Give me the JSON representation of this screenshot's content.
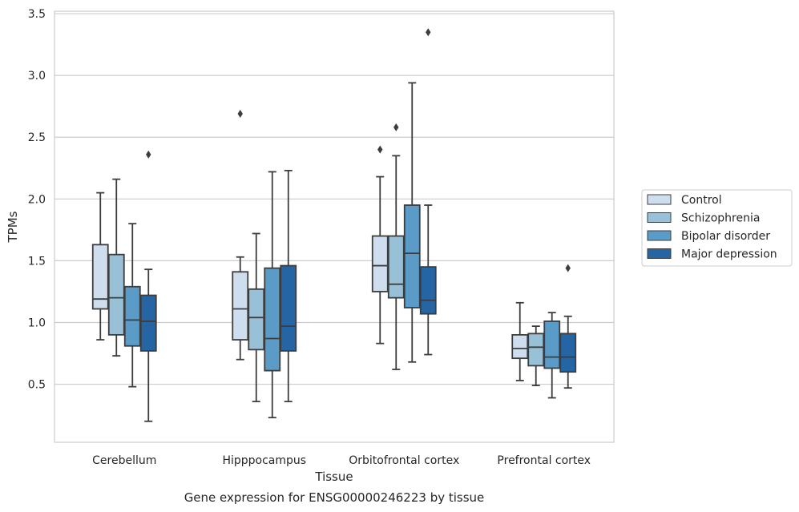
{
  "chart_data": {
    "type": "box",
    "title": "Gene expression for ENSG00000246223 by tissue",
    "xlabel": "Tissue",
    "ylabel": "TPMs",
    "categories": [
      "Cerebellum",
      "Hipppocampus",
      "Orbitofrontal cortex",
      "Prefrontal cortex"
    ],
    "ylim": [
      0.03,
      3.52
    ],
    "yticks": [
      0.5,
      1.0,
      1.5,
      2.0,
      2.5,
      3.0,
      3.5
    ],
    "ytick_labels": [
      "0.5",
      "1.0",
      "1.5",
      "2.0",
      "2.5",
      "3.0",
      "3.5"
    ],
    "grid": "horizontal",
    "legend_position": "right",
    "series": [
      {
        "name": "Control",
        "color": "#cfdeee",
        "boxes": [
          {
            "whisker_low": 0.86,
            "q1": 1.11,
            "median": 1.19,
            "q3": 1.63,
            "whisker_high": 2.05,
            "outliers": []
          },
          {
            "whisker_low": 0.7,
            "q1": 0.86,
            "median": 1.11,
            "q3": 1.41,
            "whisker_high": 1.53,
            "outliers": [
              2.69
            ]
          },
          {
            "whisker_low": 0.83,
            "q1": 1.25,
            "median": 1.46,
            "q3": 1.7,
            "whisker_high": 2.18,
            "outliers": [
              2.4
            ]
          },
          {
            "whisker_low": 0.53,
            "q1": 0.71,
            "median": 0.79,
            "q3": 0.9,
            "whisker_high": 1.16,
            "outliers": []
          }
        ]
      },
      {
        "name": "Schizophrenia",
        "color": "#98c1d8",
        "boxes": [
          {
            "whisker_low": 0.73,
            "q1": 0.9,
            "median": 1.2,
            "q3": 1.55,
            "whisker_high": 2.16,
            "outliers": []
          },
          {
            "whisker_low": 0.36,
            "q1": 0.78,
            "median": 1.04,
            "q3": 1.27,
            "whisker_high": 1.72,
            "outliers": []
          },
          {
            "whisker_low": 0.62,
            "q1": 1.2,
            "median": 1.31,
            "q3": 1.7,
            "whisker_high": 2.35,
            "outliers": [
              2.58
            ]
          },
          {
            "whisker_low": 0.49,
            "q1": 0.65,
            "median": 0.8,
            "q3": 0.91,
            "whisker_high": 0.97,
            "outliers": []
          }
        ]
      },
      {
        "name": "Bipolar disorder",
        "color": "#5a9bc8",
        "boxes": [
          {
            "whisker_low": 0.48,
            "q1": 0.81,
            "median": 1.02,
            "q3": 1.29,
            "whisker_high": 1.8,
            "outliers": []
          },
          {
            "whisker_low": 0.23,
            "q1": 0.61,
            "median": 0.87,
            "q3": 1.44,
            "whisker_high": 2.22,
            "outliers": []
          },
          {
            "whisker_low": 0.68,
            "q1": 1.12,
            "median": 1.56,
            "q3": 1.95,
            "whisker_high": 2.94,
            "outliers": []
          },
          {
            "whisker_low": 0.39,
            "q1": 0.63,
            "median": 0.72,
            "q3": 1.01,
            "whisker_high": 1.08,
            "outliers": []
          }
        ]
      },
      {
        "name": "Major depression",
        "color": "#2565a4",
        "boxes": [
          {
            "whisker_low": 0.2,
            "q1": 0.77,
            "median": 1.01,
            "q3": 1.22,
            "whisker_high": 1.43,
            "outliers": [
              2.36
            ]
          },
          {
            "whisker_low": 0.36,
            "q1": 0.77,
            "median": 0.97,
            "q3": 1.46,
            "whisker_high": 2.23,
            "outliers": []
          },
          {
            "whisker_low": 0.74,
            "q1": 1.07,
            "median": 1.18,
            "q3": 1.45,
            "whisker_high": 1.95,
            "outliers": [
              3.35
            ]
          },
          {
            "whisker_low": 0.47,
            "q1": 0.6,
            "median": 0.72,
            "q3": 0.91,
            "whisker_high": 1.05,
            "outliers": [
              1.44
            ]
          }
        ]
      }
    ]
  }
}
